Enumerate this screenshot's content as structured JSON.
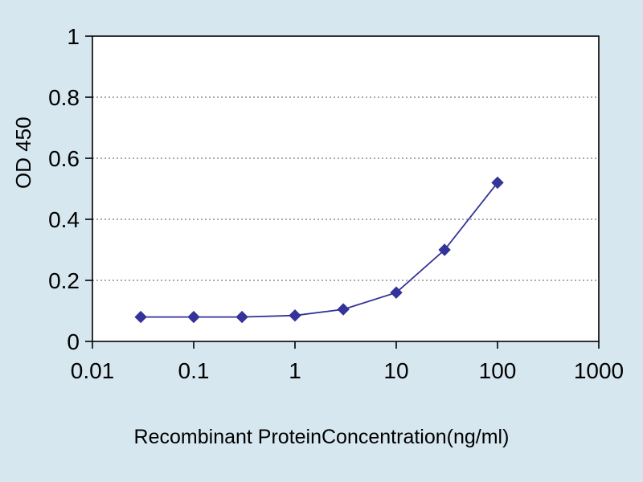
{
  "chart_data": {
    "type": "line",
    "title": "",
    "xlabel": "Recombinant ProteinConcentration(ng/ml)",
    "ylabel": "OD 450",
    "x_scale": "log",
    "xlim": [
      0.01,
      1000
    ],
    "ylim": [
      0,
      1
    ],
    "x_ticks": [
      "0.01",
      "0.1",
      "1",
      "10",
      "100",
      "1000"
    ],
    "y_ticks": [
      "0",
      "0.2",
      "0.4",
      "0.6",
      "0.8",
      "1"
    ],
    "grid": "horizontal-dotted",
    "legend": "none",
    "series": [
      {
        "name": "OD450",
        "color": "#333399",
        "marker": "diamond",
        "x": [
          0.03,
          0.1,
          0.3,
          1,
          3,
          10,
          30,
          100
        ],
        "y": [
          0.08,
          0.08,
          0.08,
          0.085,
          0.105,
          0.16,
          0.3,
          0.52
        ]
      }
    ],
    "colors": {
      "background": "#d7e7f0",
      "plot_background": "#ffffff",
      "axis": "#000000",
      "gridline": "#555555"
    }
  }
}
